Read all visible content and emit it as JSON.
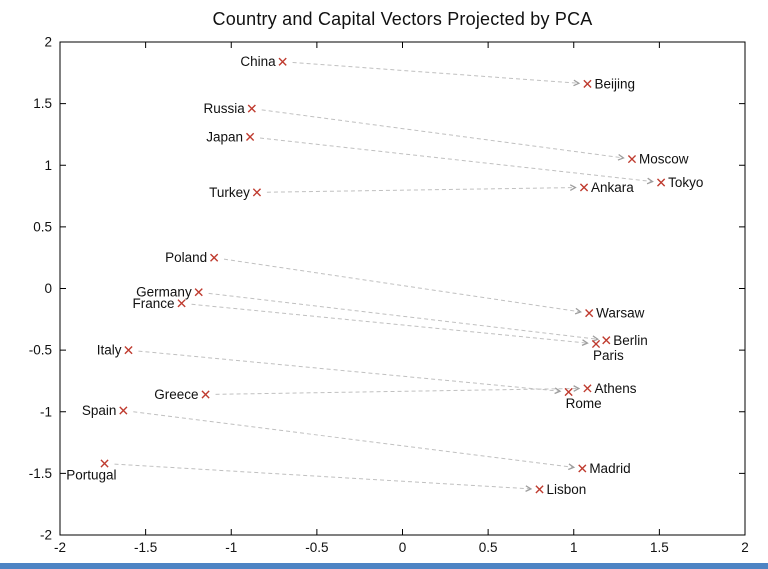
{
  "chart_data": {
    "type": "scatter",
    "title": "Country and Capital Vectors Projected by PCA",
    "xlabel": "",
    "ylabel": "",
    "xlim": [
      -2,
      2
    ],
    "ylim": [
      -2,
      2
    ],
    "x_ticks": [
      "-2",
      "-1.5",
      "-1",
      "-0.5",
      "0",
      "0.5",
      "1",
      "1.5",
      "2"
    ],
    "y_ticks": [
      "-2",
      "-1.5",
      "-1",
      "-0.5",
      "0",
      "0.5",
      "1",
      "1.5",
      "2"
    ],
    "grid": false,
    "legend": "none",
    "marker_style": "red-x",
    "connector_style": "dashed-gray-arrow",
    "pairs": [
      {
        "country": "China",
        "country_xy": [
          -0.7,
          1.84
        ],
        "country_label_pos": "left",
        "capital": "Beijing",
        "capital_xy": [
          1.08,
          1.66
        ],
        "capital_label_pos": "right"
      },
      {
        "country": "Russia",
        "country_xy": [
          -0.88,
          1.46
        ],
        "country_label_pos": "left",
        "capital": "Moscow",
        "capital_xy": [
          1.34,
          1.05
        ],
        "capital_label_pos": "right"
      },
      {
        "country": "Japan",
        "country_xy": [
          -0.89,
          1.23
        ],
        "country_label_pos": "left",
        "capital": "Tokyo",
        "capital_xy": [
          1.51,
          0.86
        ],
        "capital_label_pos": "right"
      },
      {
        "country": "Turkey",
        "country_xy": [
          -0.85,
          0.78
        ],
        "country_label_pos": "left",
        "capital": "Ankara",
        "capital_xy": [
          1.06,
          0.82
        ],
        "capital_label_pos": "right"
      },
      {
        "country": "Poland",
        "country_xy": [
          -1.1,
          0.25
        ],
        "country_label_pos": "left",
        "capital": "Warsaw",
        "capital_xy": [
          1.09,
          -0.2
        ],
        "capital_label_pos": "right"
      },
      {
        "country": "Germany",
        "country_xy": [
          -1.19,
          -0.03
        ],
        "country_label_pos": "left",
        "capital": "Berlin",
        "capital_xy": [
          1.19,
          -0.42
        ],
        "capital_label_pos": "right"
      },
      {
        "country": "France",
        "country_xy": [
          -1.29,
          -0.12
        ],
        "country_label_pos": "left",
        "capital": "Paris",
        "capital_xy": [
          1.13,
          -0.45
        ],
        "capital_label_pos": "below-start"
      },
      {
        "country": "Italy",
        "country_xy": [
          -1.6,
          -0.5
        ],
        "country_label_pos": "left",
        "capital": "Rome",
        "capital_xy": [
          0.97,
          -0.84
        ],
        "capital_label_pos": "below-start"
      },
      {
        "country": "Greece",
        "country_xy": [
          -1.15,
          -0.86
        ],
        "country_label_pos": "left",
        "capital": "Athens",
        "capital_xy": [
          1.08,
          -0.81
        ],
        "capital_label_pos": "right"
      },
      {
        "country": "Spain",
        "country_xy": [
          -1.63,
          -0.99
        ],
        "country_label_pos": "left",
        "capital": "Madrid",
        "capital_xy": [
          1.05,
          -1.46
        ],
        "capital_label_pos": "right"
      },
      {
        "country": "Portugal",
        "country_xy": [
          -1.74,
          -1.42
        ],
        "country_label_pos": "below-end",
        "capital": "Lisbon",
        "capital_xy": [
          0.8,
          -1.63
        ],
        "capital_label_pos": "right"
      }
    ]
  },
  "colors": {
    "marker": "#bf3b2f",
    "arrow": "#c0c0c0",
    "arrow_head": "#9e9e9e",
    "axis": "#000000",
    "text": "#111111",
    "background": "#ffffff",
    "progress_bar": "#4d84c4"
  }
}
